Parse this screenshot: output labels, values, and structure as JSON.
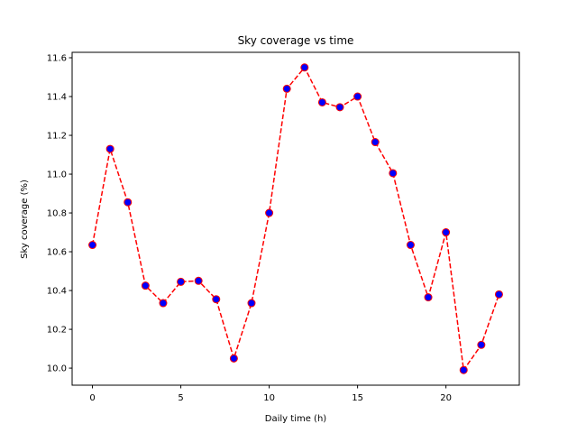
{
  "chart_data": {
    "type": "line",
    "title": "Sky coverage vs time",
    "xlabel": "Daily time (h)",
    "ylabel": "Sky coverage (%)",
    "xlim": [
      -1.15,
      24.15
    ],
    "ylim": [
      9.912,
      11.628
    ],
    "xticks": [
      0,
      5,
      10,
      15,
      20
    ],
    "xtick_labels": [
      "0",
      "5",
      "10",
      "15",
      "20"
    ],
    "yticks": [
      10.0,
      10.2,
      10.4,
      10.6,
      10.8,
      11.0,
      11.2,
      11.4,
      11.6
    ],
    "ytick_labels": [
      "10.0",
      "10.2",
      "10.4",
      "10.6",
      "10.8",
      "11.0",
      "11.2",
      "11.4",
      "11.6"
    ],
    "grid": false,
    "series": [
      {
        "x": [
          0,
          1,
          2,
          3,
          4,
          5,
          6,
          7,
          8,
          9,
          10,
          11,
          12,
          13,
          14,
          15,
          16,
          17,
          18,
          19,
          20,
          21,
          22,
          23
        ],
        "values": [
          10.635,
          11.13,
          10.855,
          10.425,
          10.335,
          10.445,
          10.45,
          10.355,
          10.05,
          10.335,
          10.8,
          11.44,
          11.55,
          11.37,
          11.345,
          11.4,
          11.165,
          11.005,
          10.635,
          10.365,
          10.7,
          9.99,
          10.12,
          10.38
        ],
        "line_color": "#ff0000",
        "line_style": "dashed",
        "marker_color": "#0000ff",
        "marker_edge_color": "#ff0000"
      }
    ]
  }
}
